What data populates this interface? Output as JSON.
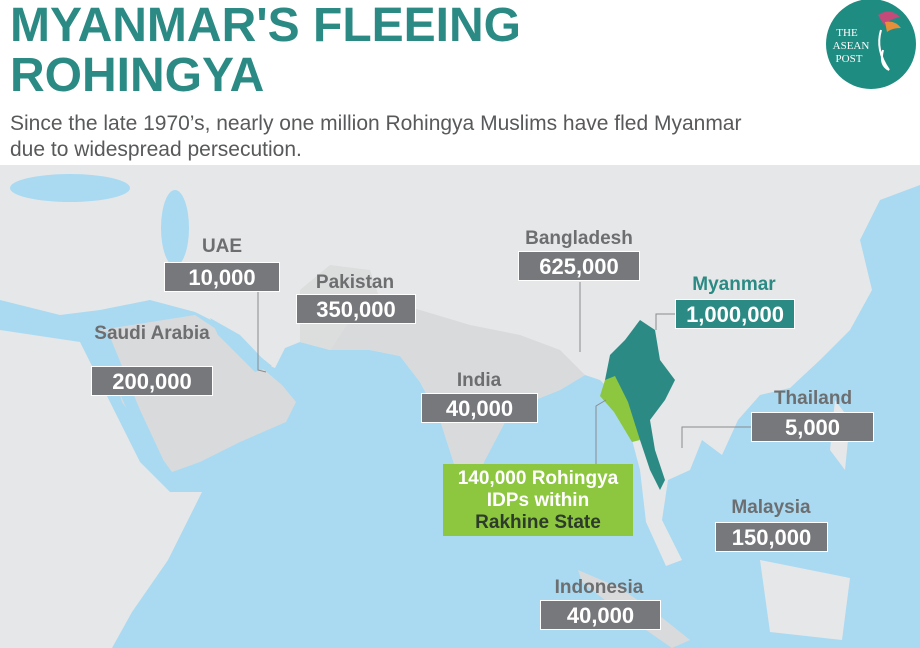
{
  "header": {
    "title": [
      "MYANMAR'S FLEEING",
      "ROHINGYA"
    ],
    "subtitle": [
      "Since the late 1970’s, nearly one million Rohingya Muslims have fled Myanmar",
      "due to widespread persecution."
    ],
    "logo": [
      "THE",
      "ASEAN",
      "POST"
    ]
  },
  "labels": [
    {
      "name": "UAE",
      "value": "10,000"
    },
    {
      "name": "Pakistan",
      "value": "350,000"
    },
    {
      "name": "Bangladesh",
      "value": "625,000"
    },
    {
      "name": "Myanmar",
      "value": "1,000,000"
    },
    {
      "name": "Saudi Arabia",
      "value": "200,000"
    },
    {
      "name": "India",
      "value": "40,000"
    },
    {
      "name": "Thailand",
      "value": "5,000"
    },
    {
      "name": "Malaysia",
      "value": "150,000"
    },
    {
      "name": "Indonesia",
      "value": "40,000"
    }
  ],
  "rakhine_note": [
    "140,000 Rohingya",
    "IDPs within",
    "Rakhine State"
  ]
}
